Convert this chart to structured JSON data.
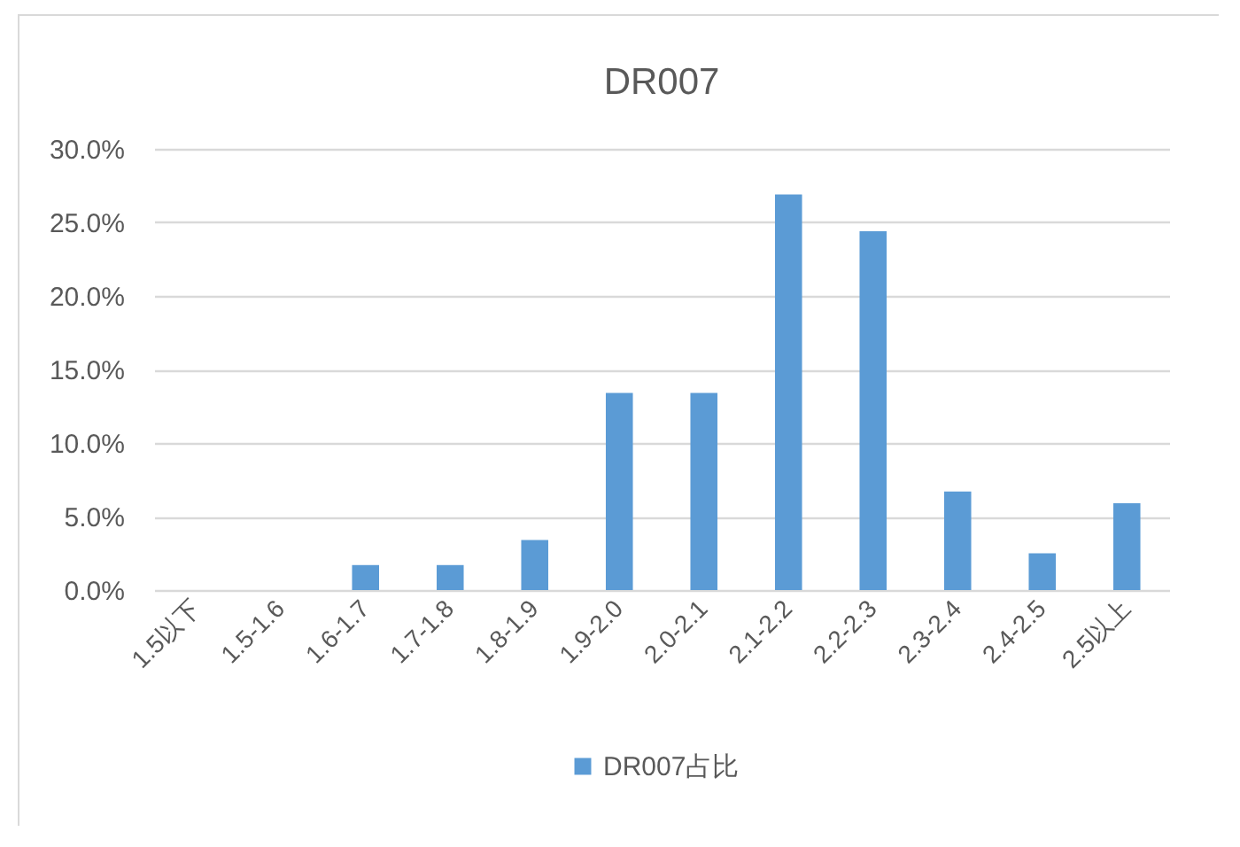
{
  "chart_data": {
    "type": "bar",
    "title": "DR007",
    "categories": [
      "1.5以下",
      "1.5-1.6",
      "1.6-1.7",
      "1.7-1.8",
      "1.8-1.9",
      "1.9-2.0",
      "2.0-2.1",
      "2.1-2.2",
      "2.2-2.3",
      "2.3-2.4",
      "2.4-2.5",
      "2.5以上"
    ],
    "series": [
      {
        "name": "DR007占比",
        "color": "#5b9bd5",
        "values": [
          0,
          0,
          1.7,
          1.7,
          3.4,
          13.4,
          13.4,
          26.9,
          24.4,
          6.7,
          2.5,
          5.9
        ]
      }
    ],
    "ylim": [
      0,
      30
    ],
    "yticks": [
      {
        "value": 0,
        "label": "0.0%"
      },
      {
        "value": 5,
        "label": "5.0%"
      },
      {
        "value": 10,
        "label": "10.0%"
      },
      {
        "value": 15,
        "label": "15.0%"
      },
      {
        "value": 20,
        "label": "20.0%"
      },
      {
        "value": 25,
        "label": "25.0%"
      },
      {
        "value": 30,
        "label": "30.0%"
      }
    ],
    "grid": "y",
    "legend": "bottom"
  }
}
